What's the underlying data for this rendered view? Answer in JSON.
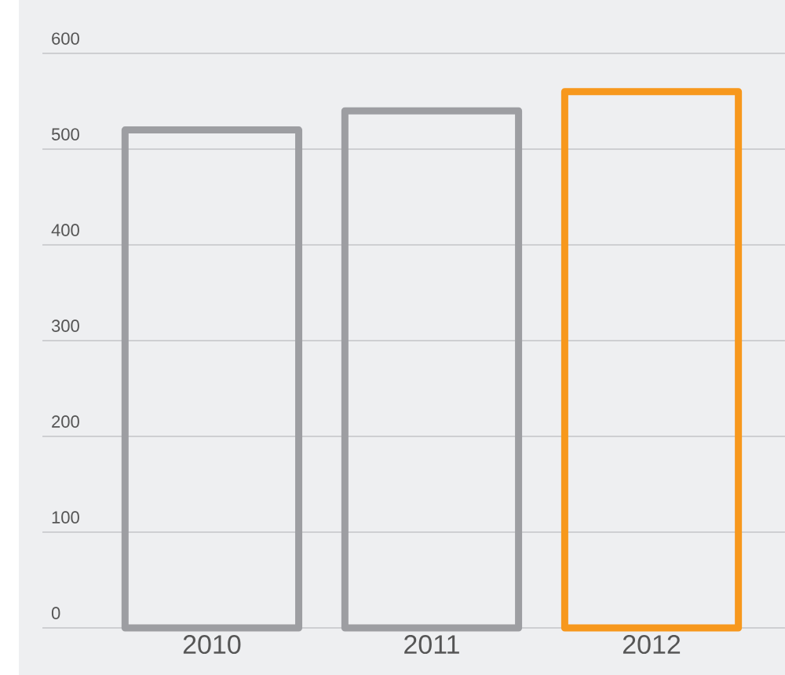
{
  "chart_data": {
    "type": "bar",
    "categories": [
      "2010",
      "2011",
      "2012"
    ],
    "values": [
      520,
      540,
      560
    ],
    "colors": [
      "#9d9ea2",
      "#9d9ea2",
      "#f7981d"
    ],
    "ylim": [
      0,
      600
    ],
    "yticks": [
      0,
      100,
      200,
      300,
      400,
      500,
      600
    ],
    "grid": "y"
  }
}
